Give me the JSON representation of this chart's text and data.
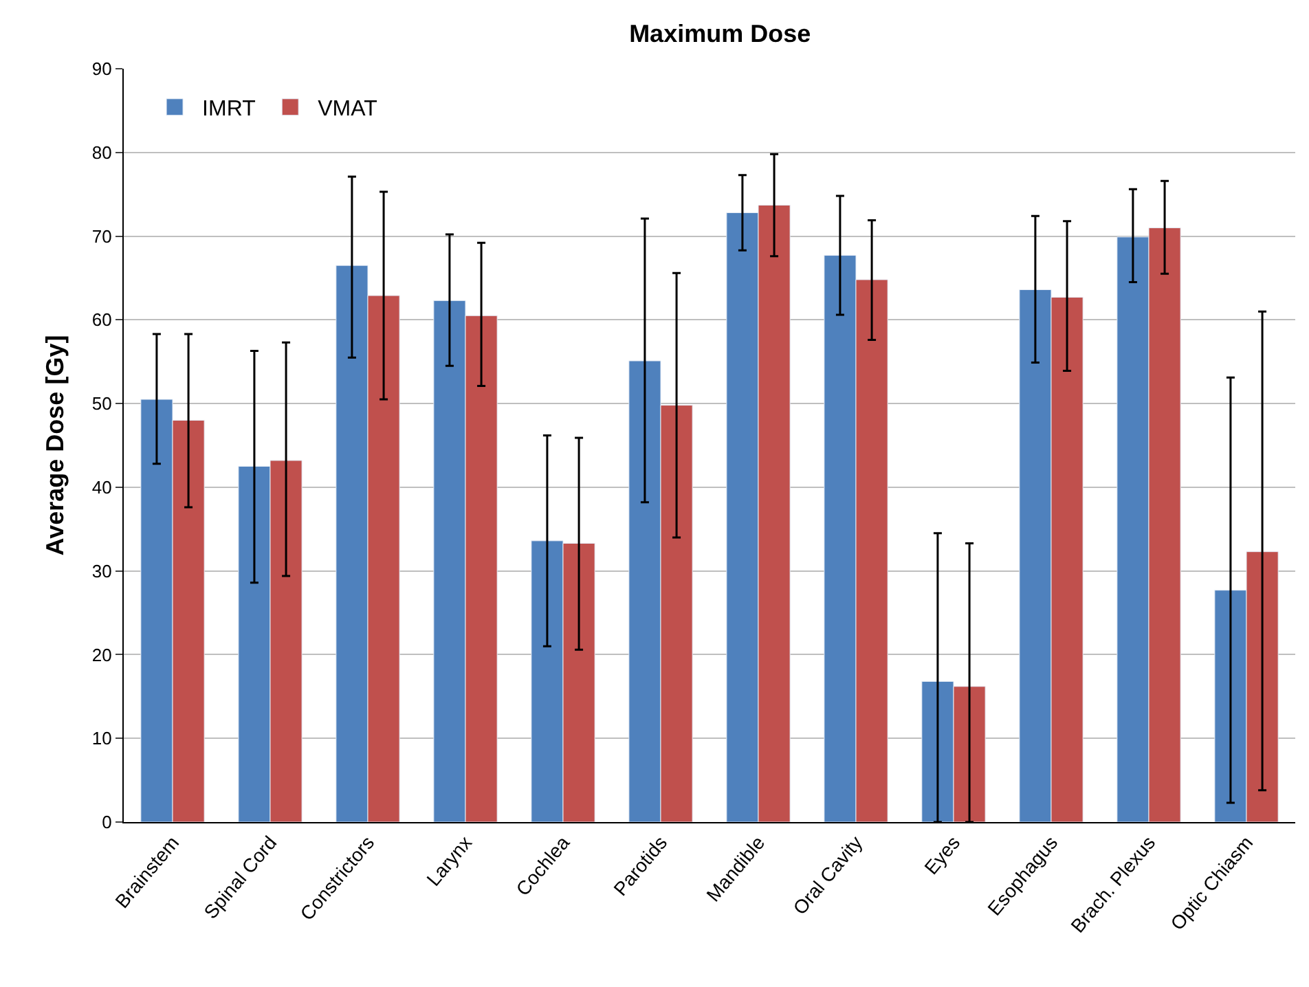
{
  "chart_data": {
    "type": "bar",
    "title": "Maximum Dose",
    "ylabel": "Average Dose [Gy]",
    "categories": [
      "Brainstem",
      "Spinal Cord",
      "Constrictors",
      "Larynx",
      "Cochlea",
      "Parotids",
      "Mandible",
      "Oral Cavity",
      "Eyes",
      "Esophagus",
      "Brach. Plexus",
      "Optic Chiasm"
    ],
    "series": [
      {
        "name": "IMRT",
        "color": "#4f81bd",
        "values": [
          50.5,
          42.5,
          66.5,
          62.3,
          33.6,
          55.1,
          72.8,
          67.7,
          16.8,
          63.6,
          69.9,
          27.7
        ],
        "errors": [
          [
            42.8,
            58.3
          ],
          [
            28.6,
            56.3
          ],
          [
            55.5,
            77.1
          ],
          [
            54.5,
            70.2
          ],
          [
            21,
            46.2
          ],
          [
            38.2,
            72.1
          ],
          [
            68.3,
            77.3
          ],
          [
            60.6,
            74.8
          ],
          [
            0,
            34.5
          ],
          [
            54.9,
            72.4
          ],
          [
            64.5,
            75.6
          ],
          [
            2.3,
            53.1
          ]
        ]
      },
      {
        "name": "VMAT",
        "color": "#c0504d",
        "values": [
          48.0,
          43.2,
          62.9,
          60.5,
          33.3,
          49.8,
          73.7,
          64.8,
          16.2,
          62.7,
          71.0,
          32.3
        ],
        "errors": [
          [
            37.6,
            58.3
          ],
          [
            29.4,
            57.3
          ],
          [
            50.5,
            75.3
          ],
          [
            52.1,
            69.2
          ],
          [
            20.6,
            45.9
          ],
          [
            34,
            65.6
          ],
          [
            67.6,
            79.8
          ],
          [
            57.6,
            71.9
          ],
          [
            0,
            33.3
          ],
          [
            53.9,
            71.8
          ],
          [
            65.5,
            76.6
          ],
          [
            3.8,
            61.0
          ]
        ]
      }
    ],
    "ylim": [
      0,
      90
    ],
    "yticks": [
      0,
      10,
      20,
      30,
      40,
      50,
      60,
      70,
      80,
      90
    ],
    "grid": "y",
    "legend": "top left"
  }
}
